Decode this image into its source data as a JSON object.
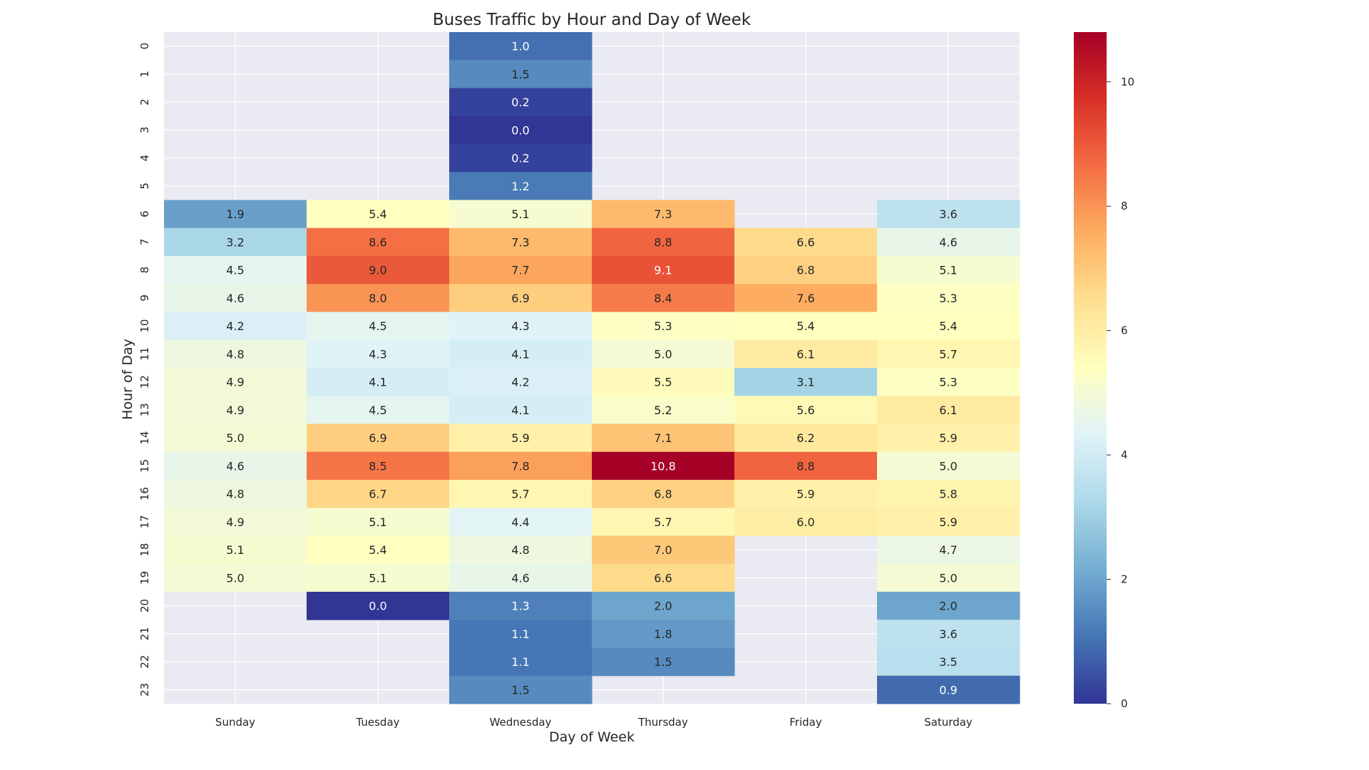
{
  "chart_data": {
    "type": "heatmap",
    "title": "Buses Traffic by Hour and Day of Week",
    "xlabel": "Day of Week",
    "ylabel": "Hour of Day",
    "columns": [
      "Sunday",
      "Tuesday",
      "Wednesday",
      "Thursday",
      "Friday",
      "Saturday"
    ],
    "rows": [
      "0",
      "1",
      "2",
      "3",
      "4",
      "5",
      "6",
      "7",
      "8",
      "9",
      "10",
      "11",
      "12",
      "13",
      "14",
      "15",
      "16",
      "17",
      "18",
      "19",
      "20",
      "21",
      "22",
      "23"
    ],
    "values": [
      [
        null,
        null,
        1.0,
        null,
        null,
        null
      ],
      [
        null,
        null,
        1.5,
        null,
        null,
        null
      ],
      [
        null,
        null,
        0.2,
        null,
        null,
        null
      ],
      [
        null,
        null,
        0.0,
        null,
        null,
        null
      ],
      [
        null,
        null,
        0.2,
        null,
        null,
        null
      ],
      [
        null,
        null,
        1.2,
        null,
        null,
        null
      ],
      [
        1.9,
        5.4,
        5.1,
        7.3,
        null,
        3.6
      ],
      [
        3.2,
        8.6,
        7.3,
        8.8,
        6.6,
        4.6
      ],
      [
        4.5,
        9.0,
        7.7,
        9.1,
        6.8,
        5.1
      ],
      [
        4.6,
        8.0,
        6.9,
        8.4,
        7.6,
        5.3
      ],
      [
        4.2,
        4.5,
        4.3,
        5.3,
        5.4,
        5.4
      ],
      [
        4.8,
        4.3,
        4.1,
        5.0,
        6.1,
        5.7
      ],
      [
        4.9,
        4.1,
        4.2,
        5.5,
        3.1,
        5.3
      ],
      [
        4.9,
        4.5,
        4.1,
        5.2,
        5.6,
        6.1
      ],
      [
        5.0,
        6.9,
        5.9,
        7.1,
        6.2,
        5.9
      ],
      [
        4.6,
        8.5,
        7.8,
        10.8,
        8.8,
        5.0
      ],
      [
        4.8,
        6.7,
        5.7,
        6.8,
        5.9,
        5.8
      ],
      [
        4.9,
        5.1,
        4.4,
        5.7,
        6.0,
        5.9
      ],
      [
        5.1,
        5.4,
        4.8,
        7.0,
        null,
        4.7
      ],
      [
        5.0,
        5.1,
        4.6,
        6.6,
        null,
        5.0
      ],
      [
        null,
        0.0,
        1.3,
        2.0,
        null,
        2.0
      ],
      [
        null,
        null,
        1.1,
        1.8,
        null,
        3.6
      ],
      [
        null,
        null,
        1.1,
        1.5,
        null,
        3.5
      ],
      [
        null,
        null,
        1.5,
        null,
        null,
        0.9
      ]
    ],
    "colormap": "RdYlBu_r",
    "vmin": 0,
    "vmax": 10.8,
    "colorbar_ticks": [
      0,
      2,
      4,
      6,
      8,
      10
    ],
    "colorbar_tick_labels": [
      "0",
      "2",
      "4",
      "6",
      "8",
      "10"
    ],
    "value_format": "0.1f",
    "background_color": "#eaeaf2",
    "grid_color": "#ffffff"
  }
}
